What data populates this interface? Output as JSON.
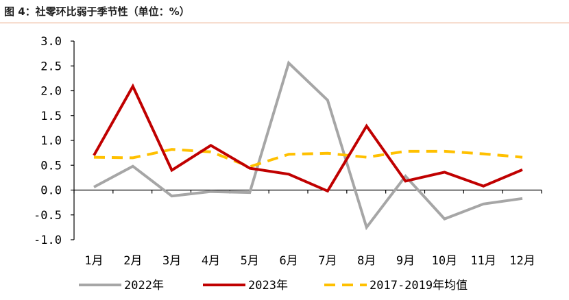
{
  "figure": {
    "title": "图 4：社零环比弱于季节性（单位：%）"
  },
  "colors": {
    "s2022": "#a6a6a6",
    "s2023": "#c00000",
    "avg": "#ffc000",
    "accent": "#e8a07a"
  },
  "chart_data": {
    "type": "line",
    "title": "",
    "xlabel": "",
    "ylabel": "",
    "ylim": [
      -1.0,
      3.0
    ],
    "yticks": [
      "3.0",
      "2.5",
      "2.0",
      "1.5",
      "1.0",
      "0.5",
      "0.0",
      "-0.5",
      "-1.0"
    ],
    "ytick_values": [
      3.0,
      2.5,
      2.0,
      1.5,
      1.0,
      0.5,
      0.0,
      -0.5,
      -1.0
    ],
    "categories": [
      "1月",
      "2月",
      "3月",
      "4月",
      "5月",
      "6月",
      "7月",
      "8月",
      "9月",
      "10月",
      "11月",
      "12月"
    ],
    "grid": false,
    "legend_position": "bottom",
    "series": [
      {
        "name": "2022年",
        "color": "#a6a6a6",
        "dash": "solid",
        "values": [
          0.06,
          0.48,
          -0.12,
          -0.03,
          -0.05,
          2.56,
          1.81,
          -0.75,
          0.28,
          -0.58,
          -0.28,
          -0.17
        ]
      },
      {
        "name": "2023年",
        "color": "#c00000",
        "dash": "solid",
        "values": [
          0.7,
          2.09,
          0.4,
          0.9,
          0.44,
          0.32,
          -0.02,
          1.29,
          0.18,
          0.36,
          0.08,
          0.41
        ]
      },
      {
        "name": "2017-2019年均值",
        "color": "#ffc000",
        "dash": "dashed",
        "values": [
          0.66,
          0.65,
          0.82,
          0.77,
          0.47,
          0.72,
          0.74,
          0.66,
          0.78,
          0.78,
          0.73,
          0.66
        ]
      }
    ]
  }
}
